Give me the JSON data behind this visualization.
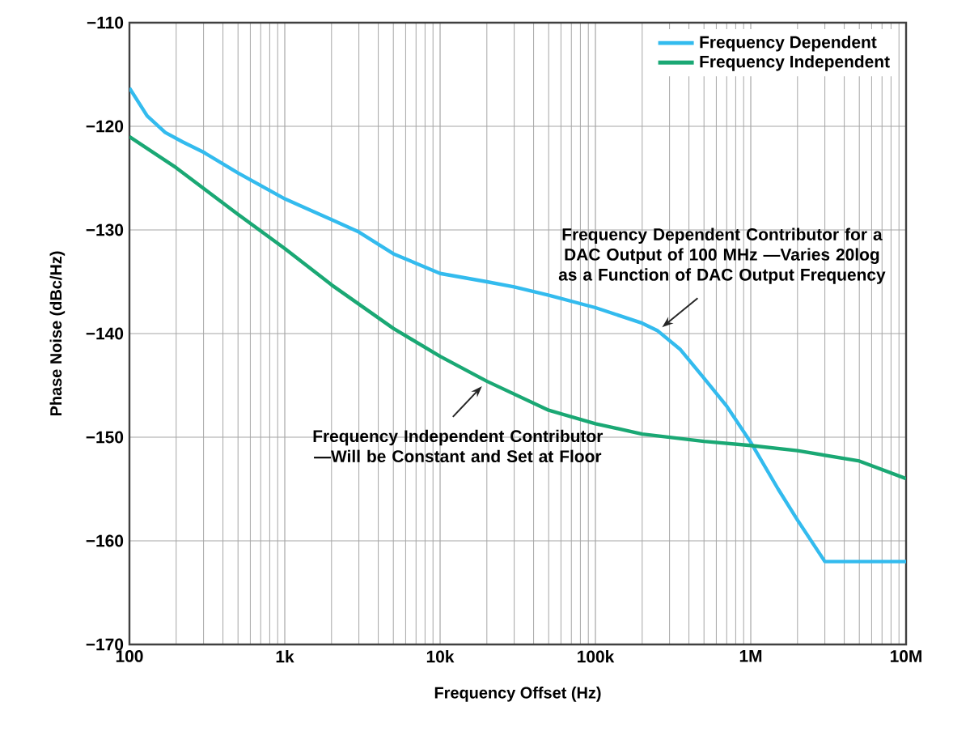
{
  "chart_data": {
    "type": "line",
    "xlabel": "Frequency Offset (Hz)",
    "ylabel": "Phase Noise (dBc/Hz)",
    "log": "x",
    "grid": true,
    "legend": "top right",
    "line_style": "solid",
    "marker": "none",
    "xlim": [
      100,
      10000000
    ],
    "ylim": [
      -170,
      -110
    ],
    "xticks": [
      {
        "value": 100,
        "label": "100"
      },
      {
        "value": 1000,
        "label": "1k"
      },
      {
        "value": 10000,
        "label": "10k"
      },
      {
        "value": 100000,
        "label": "100k"
      },
      {
        "value": 1000000,
        "label": "1M"
      },
      {
        "value": 10000000,
        "label": "10M"
      }
    ],
    "yticks": [
      {
        "value": -170,
        "label": "−170"
      },
      {
        "value": -160,
        "label": "−160"
      },
      {
        "value": -150,
        "label": "−150"
      },
      {
        "value": -140,
        "label": "−140"
      },
      {
        "value": -130,
        "label": "−130"
      },
      {
        "value": -120,
        "label": "−120"
      },
      {
        "value": -110,
        "label": "−110"
      }
    ],
    "series": [
      {
        "name": "Frequency Dependent",
        "color": "#33bbee",
        "x": [
          100,
          130,
          170,
          220,
          300,
          500,
          1000,
          2000,
          3000,
          5000,
          10000,
          20000,
          30000,
          50000,
          100000,
          200000,
          250000,
          350000,
          500000,
          700000,
          1000000,
          1500000,
          2000000,
          3000000,
          10000000
        ],
        "values": [
          -116.3,
          -119,
          -120.6,
          -121.5,
          -122.5,
          -124.5,
          -127,
          -129,
          -130.2,
          -132.3,
          -134.2,
          -135,
          -135.5,
          -136.3,
          -137.5,
          -139,
          -139.7,
          -141.5,
          -144.3,
          -147,
          -150.5,
          -155,
          -158,
          -162,
          -162
        ]
      },
      {
        "name": "Frequency Independent",
        "color": "#1aa874",
        "x": [
          100,
          200,
          500,
          1000,
          2000,
          5000,
          10000,
          20000,
          50000,
          100000,
          200000,
          500000,
          1000000,
          2000000,
          5000000,
          10000000
        ],
        "values": [
          -121,
          -124,
          -128.5,
          -131.8,
          -135.3,
          -139.5,
          -142.2,
          -144.6,
          -147.4,
          -148.7,
          -149.7,
          -150.4,
          -150.8,
          -151.3,
          -152.3,
          -154
        ]
      }
    ],
    "annotations": [
      {
        "text": "Frequency Dependent Contributor for a DAC Output of 100 MHz —Varies 20log as a Function of DAC Output Frequency",
        "x": 250000,
        "y": -139.7
      },
      {
        "text": "Frequency Independent Contributor —Will be Constant and Set at Floor",
        "x": 20000,
        "y": -144.6
      }
    ]
  }
}
